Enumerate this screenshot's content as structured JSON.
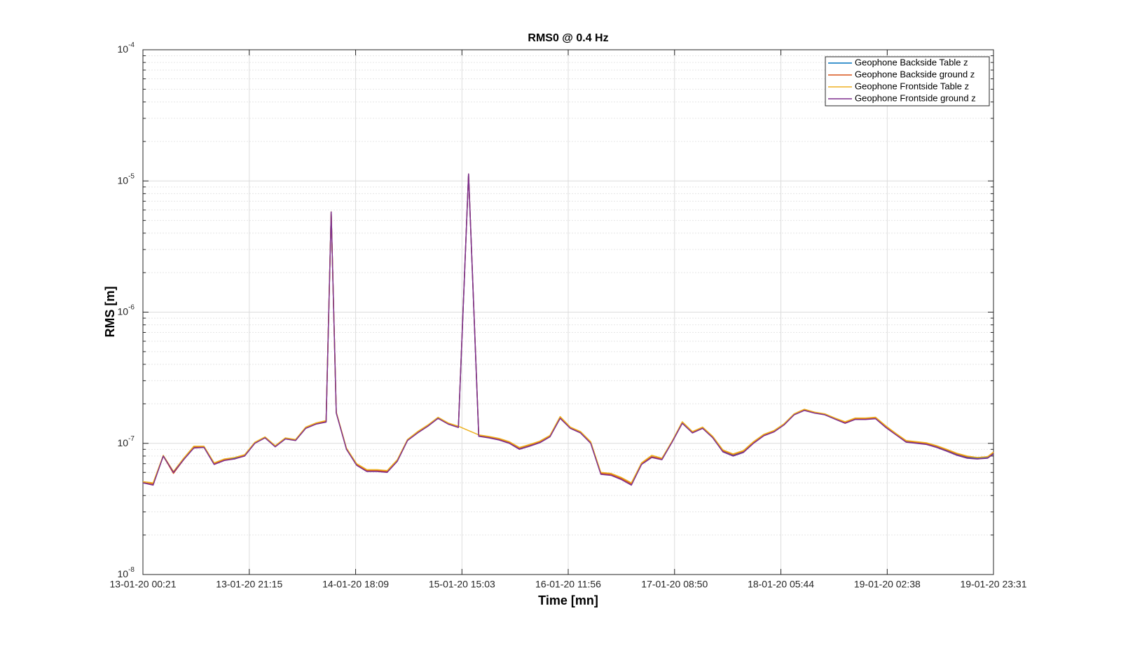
{
  "chart_data": {
    "type": "line",
    "title": "RMS0 @ 0.4 Hz",
    "x_label": "Time [mn]",
    "y_label": "RMS [m]",
    "log_y": true,
    "grid": true,
    "minor_grid": true,
    "legend": "top-right",
    "xlim": [
      "2020-01-13 00:21",
      "2020-01-19 23:31"
    ],
    "xticks": [
      {
        "value": "2020-01-13 00:21",
        "label": "13-01-20 00:21"
      },
      {
        "value": "2020-01-13 21:15",
        "label": "13-01-20 21:15"
      },
      {
        "value": "2020-01-14 18:09",
        "label": "14-01-20 18:09"
      },
      {
        "value": "2020-01-15 15:03",
        "label": "15-01-20 15:03"
      },
      {
        "value": "2020-01-16 11:56",
        "label": "16-01-20 11:56"
      },
      {
        "value": "2020-01-17 08:50",
        "label": "17-01-20 08:50"
      },
      {
        "value": "2020-01-18 05:44",
        "label": "18-01-20 05:44"
      },
      {
        "value": "2020-01-19 02:38",
        "label": "19-01-20 02:38"
      },
      {
        "value": "2020-01-19 23:31",
        "label": "19-01-20 23:31"
      }
    ],
    "ylim": [
      1e-08,
      0.0001
    ],
    "yticks": [
      {
        "value": 1e-08,
        "label": "10^-8"
      },
      {
        "value": 1e-07,
        "label": "10^-7"
      },
      {
        "value": 1e-06,
        "label": "10^-6"
      },
      {
        "value": 1e-05,
        "label": "10^-5"
      },
      {
        "value": 0.0001,
        "label": "10^-4"
      }
    ],
    "x": [
      "2020-01-13 00:21",
      "2020-01-13 02:21",
      "2020-01-13 04:21",
      "2020-01-13 06:21",
      "2020-01-13 08:21",
      "2020-01-13 10:21",
      "2020-01-13 12:21",
      "2020-01-13 14:21",
      "2020-01-13 16:21",
      "2020-01-13 18:21",
      "2020-01-13 20:21",
      "2020-01-13 22:21",
      "2020-01-14 00:21",
      "2020-01-14 02:21",
      "2020-01-14 04:21",
      "2020-01-14 06:21",
      "2020-01-14 08:21",
      "2020-01-14 10:21",
      "2020-01-14 12:21",
      "2020-01-14 13:21",
      "2020-01-14 14:21",
      "2020-01-14 16:21",
      "2020-01-14 18:21",
      "2020-01-14 20:21",
      "2020-01-14 22:21",
      "2020-01-15 00:21",
      "2020-01-15 02:21",
      "2020-01-15 04:21",
      "2020-01-15 06:21",
      "2020-01-15 08:21",
      "2020-01-15 10:21",
      "2020-01-15 12:21",
      "2020-01-15 14:21",
      "2020-01-15 16:21",
      "2020-01-15 18:21",
      "2020-01-15 20:21",
      "2020-01-15 22:21",
      "2020-01-16 00:21",
      "2020-01-16 02:21",
      "2020-01-16 04:21",
      "2020-01-16 06:21",
      "2020-01-16 08:21",
      "2020-01-16 10:21",
      "2020-01-16 12:21",
      "2020-01-16 14:21",
      "2020-01-16 16:21",
      "2020-01-16 18:21",
      "2020-01-16 20:21",
      "2020-01-16 22:21",
      "2020-01-17 00:21",
      "2020-01-17 02:21",
      "2020-01-17 04:21",
      "2020-01-17 06:21",
      "2020-01-17 08:21",
      "2020-01-17 10:21",
      "2020-01-17 12:21",
      "2020-01-17 14:21",
      "2020-01-17 16:21",
      "2020-01-17 18:21",
      "2020-01-17 20:21",
      "2020-01-17 22:21",
      "2020-01-18 00:21",
      "2020-01-18 02:21",
      "2020-01-18 04:21",
      "2020-01-18 06:21",
      "2020-01-18 08:21",
      "2020-01-18 10:21",
      "2020-01-18 12:21",
      "2020-01-18 14:21",
      "2020-01-18 16:21",
      "2020-01-18 18:21",
      "2020-01-18 20:21",
      "2020-01-18 22:21",
      "2020-01-19 00:21",
      "2020-01-19 02:21",
      "2020-01-19 04:21",
      "2020-01-19 06:21",
      "2020-01-19 08:21",
      "2020-01-19 10:21",
      "2020-01-19 12:21",
      "2020-01-19 14:21",
      "2020-01-19 16:21",
      "2020-01-19 18:21",
      "2020-01-19 20:21",
      "2020-01-19 22:21",
      "2020-01-19 23:31"
    ],
    "series": [
      {
        "name": "Geophone Backside Table z",
        "color": "#0072BD",
        "values": [
          5e-08,
          4.9e-08,
          8e-08,
          6e-08,
          7.6e-08,
          9.3e-08,
          9.4e-08,
          7e-08,
          7.5e-08,
          7.7e-08,
          8.1e-08,
          1.01e-07,
          1.11e-07,
          9.5e-08,
          1.09e-07,
          1.06e-07,
          1.31e-07,
          1.41e-07,
          1.46e-07,
          5.8e-06,
          1.71e-07,
          9.1e-08,
          6.9e-08,
          6.2e-08,
          6.2e-08,
          6.1e-08,
          7.4e-08,
          1.06e-07,
          1.21e-07,
          1.36e-07,
          1.56e-07,
          1.41e-07,
          1.33e-07,
          1.13e-05,
          1.14e-07,
          1.11e-07,
          1.07e-07,
          1.01e-07,
          9.1e-08,
          9.6e-08,
          1.02e-07,
          1.13e-07,
          1.56e-07,
          1.31e-07,
          1.21e-07,
          1.01e-07,
          5.9e-08,
          5.8e-08,
          5.4e-08,
          4.9e-08,
          7e-08,
          7.9e-08,
          7.6e-08,
          1.03e-07,
          1.43e-07,
          1.21e-07,
          1.31e-07,
          1.11e-07,
          8.7e-08,
          8.1e-08,
          8.6e-08,
          1.01e-07,
          1.15e-07,
          1.23e-07,
          1.39e-07,
          1.66e-07,
          1.79e-07,
          1.71e-07,
          1.66e-07,
          1.54e-07,
          1.43e-07,
          1.53e-07,
          1.53e-07,
          1.55e-07,
          1.33e-07,
          1.17e-07,
          1.03e-07,
          1.01e-07,
          9.9e-08,
          9.4e-08,
          8.8e-08,
          8.2e-08,
          7.8e-08,
          7.7e-08,
          7.8e-08,
          8.4e-08
        ]
      },
      {
        "name": "Geophone Backside ground z",
        "color": "#D95319",
        "values": [
          5e-08,
          4.9e-08,
          8e-08,
          5.9e-08,
          7.5e-08,
          9.4e-08,
          9.4e-08,
          7e-08,
          7.5e-08,
          7.6e-08,
          8.1e-08,
          1.01e-07,
          1.11e-07,
          9.5e-08,
          1.09e-07,
          1.06e-07,
          1.32e-07,
          1.42e-07,
          1.47e-07,
          5.8e-06,
          1.72e-07,
          9.1e-08,
          6.9e-08,
          6.2e-08,
          6.2e-08,
          6.1e-08,
          7.4e-08,
          1.06e-07,
          1.22e-07,
          1.37e-07,
          1.57e-07,
          1.42e-07,
          1.34e-07,
          1.13e-05,
          1.15e-07,
          1.12e-07,
          1.08e-07,
          1.02e-07,
          9.2e-08,
          9.7e-08,
          1.03e-07,
          1.14e-07,
          1.57e-07,
          1.32e-07,
          1.22e-07,
          1.02e-07,
          5.9e-08,
          5.8e-08,
          5.4e-08,
          4.9e-08,
          7e-08,
          7.9e-08,
          7.6e-08,
          1.03e-07,
          1.44e-07,
          1.22e-07,
          1.32e-07,
          1.12e-07,
          8.8e-08,
          8.2e-08,
          8.7e-08,
          1.02e-07,
          1.16e-07,
          1.24e-07,
          1.4e-07,
          1.67e-07,
          1.8e-07,
          1.72e-07,
          1.67e-07,
          1.55e-07,
          1.44e-07,
          1.54e-07,
          1.54e-07,
          1.56e-07,
          1.34e-07,
          1.18e-07,
          1.04e-07,
          1.02e-07,
          1e-07,
          9.5e-08,
          8.9e-08,
          8.3e-08,
          7.9e-08,
          7.8e-08,
          7.9e-08,
          8.5e-08
        ]
      },
      {
        "name": "Geophone Frontside Table z",
        "color": "#EDB120",
        "values": [
          5.1e-08,
          5e-08,
          8.1e-08,
          6.1e-08,
          7.7e-08,
          9.5e-08,
          9.5e-08,
          7.1e-08,
          7.6e-08,
          7.8e-08,
          8.2e-08,
          1.02e-07,
          1.12e-07,
          9.6e-08,
          1.1e-07,
          1.07e-07,
          1.33e-07,
          1.43e-07,
          1.49e-07,
          5.8e-06,
          1.73e-07,
          9.2e-08,
          7e-08,
          6.3e-08,
          6.3e-08,
          6.2e-08,
          7.5e-08,
          1.07e-07,
          1.23e-07,
          1.38e-07,
          1.58e-07,
          1.43e-07,
          1.35e-07,
          1.25e-07,
          1.16e-07,
          1.13e-07,
          1.09e-07,
          1.03e-07,
          9.3e-08,
          9.8e-08,
          1.04e-07,
          1.15e-07,
          1.6e-07,
          1.33e-07,
          1.23e-07,
          1.03e-07,
          6e-08,
          5.9e-08,
          5.5e-08,
          5e-08,
          7.1e-08,
          8.1e-08,
          7.7e-08,
          1.04e-07,
          1.46e-07,
          1.23e-07,
          1.33e-07,
          1.13e-07,
          8.9e-08,
          8.3e-08,
          8.8e-08,
          1.03e-07,
          1.17e-07,
          1.25e-07,
          1.41e-07,
          1.68e-07,
          1.82e-07,
          1.73e-07,
          1.68e-07,
          1.56e-07,
          1.46e-07,
          1.56e-07,
          1.56e-07,
          1.58e-07,
          1.36e-07,
          1.19e-07,
          1.05e-07,
          1.03e-07,
          1.01e-07,
          9.6e-08,
          9e-08,
          8.4e-08,
          8e-08,
          7.8e-08,
          7.9e-08,
          8.6e-08
        ]
      },
      {
        "name": "Geophone Frontside ground z",
        "color": "#7E2F8E",
        "values": [
          5e-08,
          4.8e-08,
          8e-08,
          6e-08,
          7.5e-08,
          9.2e-08,
          9.3e-08,
          6.9e-08,
          7.4e-08,
          7.6e-08,
          8e-08,
          1e-07,
          1.1e-07,
          9.4e-08,
          1.08e-07,
          1.05e-07,
          1.3e-07,
          1.4e-07,
          1.45e-07,
          5.8e-06,
          1.7e-07,
          9e-08,
          6.8e-08,
          6.1e-08,
          6.1e-08,
          6e-08,
          7.3e-08,
          1.05e-07,
          1.2e-07,
          1.35e-07,
          1.55e-07,
          1.4e-07,
          1.32e-07,
          1.13e-05,
          1.13e-07,
          1.1e-07,
          1.06e-07,
          1e-07,
          9e-08,
          9.5e-08,
          1.01e-07,
          1.12e-07,
          1.55e-07,
          1.3e-07,
          1.2e-07,
          1e-07,
          5.8e-08,
          5.7e-08,
          5.3e-08,
          4.8e-08,
          6.9e-08,
          7.8e-08,
          7.5e-08,
          1.02e-07,
          1.42e-07,
          1.2e-07,
          1.3e-07,
          1.1e-07,
          8.6e-08,
          8e-08,
          8.5e-08,
          1e-07,
          1.14e-07,
          1.22e-07,
          1.38e-07,
          1.65e-07,
          1.78e-07,
          1.7e-07,
          1.65e-07,
          1.53e-07,
          1.42e-07,
          1.52e-07,
          1.52e-07,
          1.54e-07,
          1.32e-07,
          1.16e-07,
          1.02e-07,
          1e-07,
          9.8e-08,
          9.3e-08,
          8.7e-08,
          8.1e-08,
          7.7e-08,
          7.6e-08,
          7.7e-08,
          8.3e-08
        ]
      }
    ]
  }
}
